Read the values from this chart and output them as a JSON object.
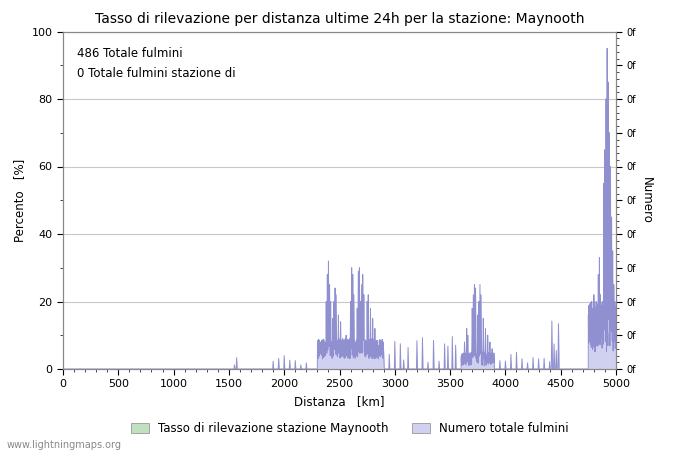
{
  "title": "Tasso di rilevazione per distanza ultime 24h per la stazione: Maynooth",
  "xlabel": "Distanza   [km]",
  "ylabel_left": "Percento   [%]",
  "ylabel_right": "Numero",
  "annotation_line1": "486 Totale fulmini",
  "annotation_line2": "0 Totale fulmini stazione di",
  "legend_label1": "Tasso di rilevazione stazione Maynooth",
  "legend_label2": "Numero totale fulmini",
  "legend_color1": "#c8e6c8",
  "legend_color2": "#c8c8f0",
  "watermark": "www.lightningmaps.org",
  "xlim": [
    0,
    5000
  ],
  "ylim_left": [
    0,
    100
  ],
  "xticks": [
    0,
    500,
    1000,
    1500,
    2000,
    2500,
    3000,
    3500,
    4000,
    4500,
    5000
  ],
  "yticks_left": [
    0,
    20,
    40,
    60,
    80,
    100
  ],
  "background_color": "#ffffff",
  "grid_color": "#c8c8c8",
  "line_color": "#9090d0",
  "fill_color": "#d0d0f0",
  "line_color_green": "#80c080",
  "fill_color_green": "#c0e0c0"
}
